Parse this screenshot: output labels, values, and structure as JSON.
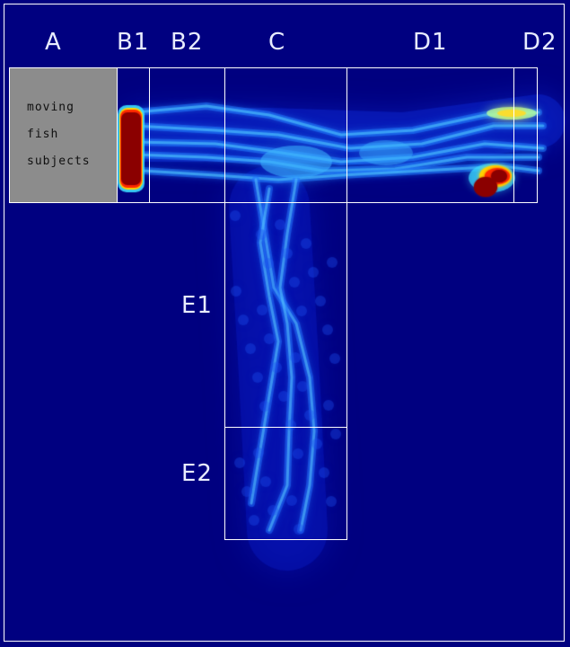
{
  "zone_labels": {
    "a": "A",
    "b1": "B1",
    "b2": "B2",
    "c": "C",
    "d1": "D1",
    "d2": "D2",
    "e1": "E1",
    "e2": "E2"
  },
  "start_zone_text": {
    "line1": "moving",
    "line2": "fish",
    "line3": "subjects"
  },
  "colors": {
    "background": "#000080",
    "grid_lines": "#ffffff",
    "start_zone_fill": "#8c8c8c",
    "heat_low": "#0a1ed8",
    "heat_mid": "#2fb8ff",
    "heat_high": "#8b0000"
  }
}
